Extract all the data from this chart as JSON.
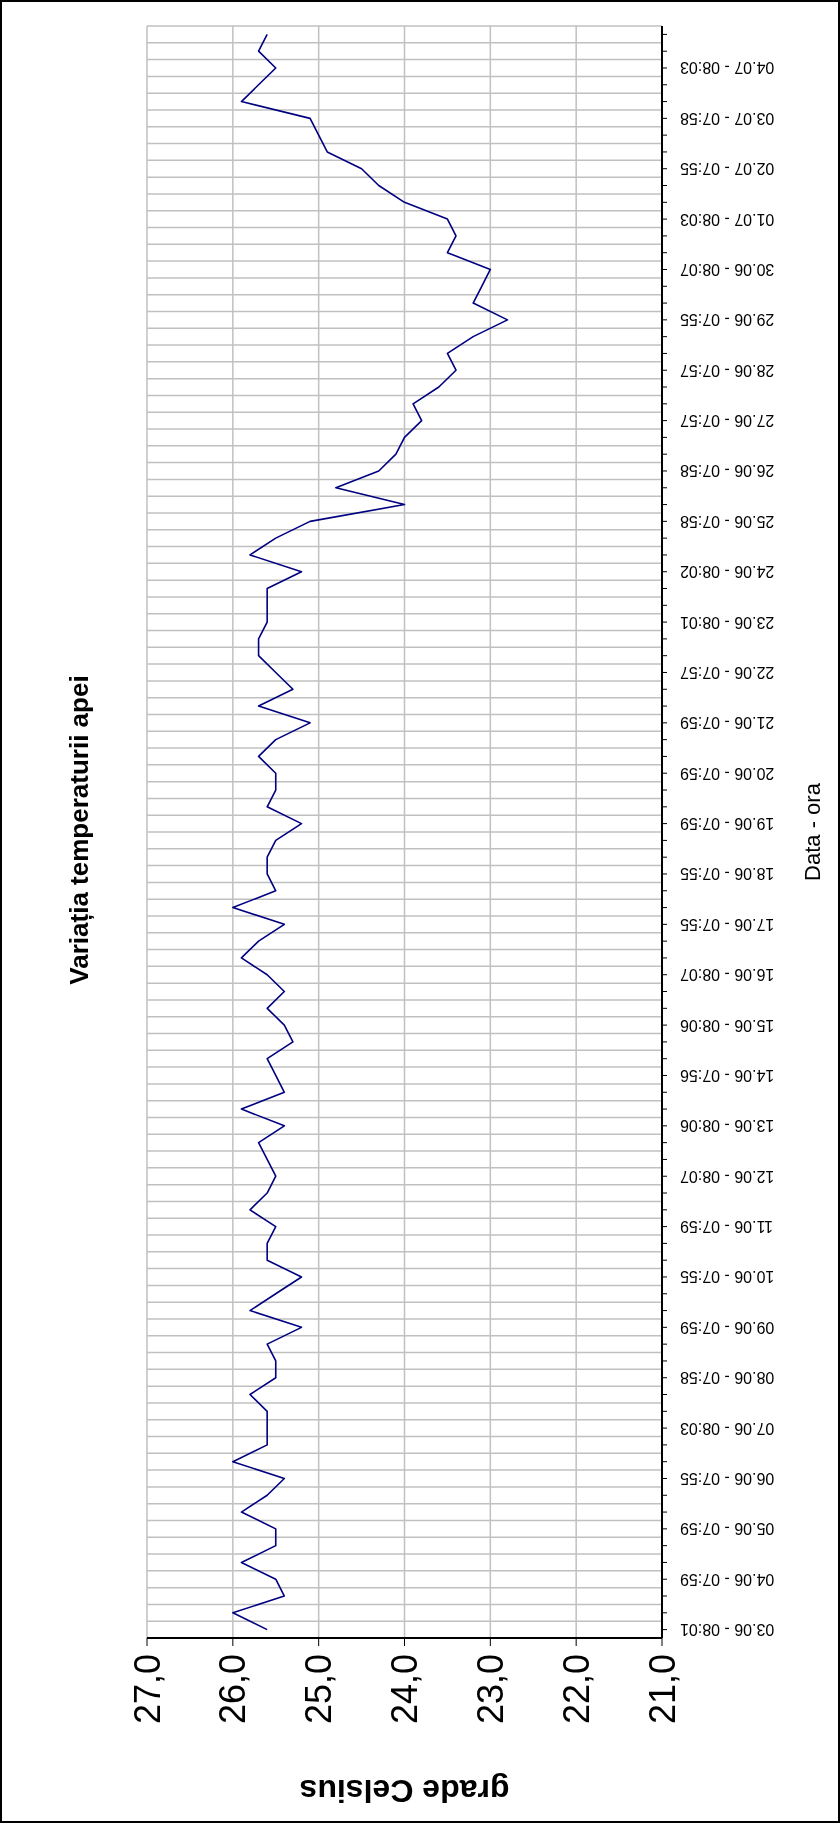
{
  "chart_data": {
    "type": "line",
    "orientation": "horizontal",
    "title": "Variația temperaturii apei",
    "xlabel": "grade Celsius",
    "ylabel": "Data - ora",
    "categories": [
      null,
      null,
      "04.07 - 08:03",
      null,
      null,
      "03.07 - 07:58",
      null,
      null,
      "02.07 - 07:55",
      null,
      null,
      "01.07 - 08:03",
      null,
      null,
      "30.06 - 08:07",
      null,
      null,
      "29.06 - 07:55",
      null,
      null,
      "28.06 - 07:57",
      null,
      null,
      "27.06 - 07:57",
      null,
      null,
      "26.06 - 07:58",
      null,
      null,
      "25.06 - 07:58",
      null,
      null,
      "24.06 - 08:02",
      null,
      null,
      "23.06 - 08:01",
      null,
      null,
      "22.06 - 07:57",
      null,
      null,
      "21.06 - 07:59",
      null,
      null,
      "20.06 - 07:59",
      null,
      null,
      "19.06 - 07:59",
      null,
      null,
      "18.06 - 07:55",
      null,
      null,
      "17.06 - 07:55",
      null,
      null,
      "16.06 - 08:07",
      null,
      null,
      "15.06 - 08:06",
      null,
      null,
      "14.06 - 07:56",
      null,
      null,
      "13.06 - 08:06",
      null,
      null,
      "12.06 - 08:07",
      null,
      null,
      "11.06 - 07:59",
      null,
      null,
      "10.06 - 07:55",
      null,
      null,
      "09.06 - 07:59",
      null,
      null,
      "08.06 - 07:58",
      null,
      null,
      "07.06 - 08:03",
      null,
      null,
      "06.06 - 07:55",
      null,
      null,
      "05.06 - 07:59",
      null,
      null,
      "04.06 - 07:59",
      null,
      null,
      "03.06 - 08:01"
    ],
    "series": [
      {
        "color": "#000080",
        "values": [
          25.6,
          25.7,
          25.5,
          25.7,
          25.9,
          25.1,
          25.0,
          24.9,
          24.5,
          24.3,
          24.0,
          23.5,
          23.4,
          23.5,
          23.0,
          23.1,
          23.2,
          22.8,
          23.2,
          23.5,
          23.4,
          23.6,
          23.9,
          23.8,
          24.0,
          24.1,
          24.3,
          24.8,
          24.0,
          25.1,
          25.5,
          25.8,
          25.2,
          25.6,
          25.6,
          25.6,
          25.7,
          25.7,
          25.5,
          25.3,
          25.7,
          25.1,
          25.5,
          25.7,
          25.5,
          25.5,
          25.6,
          25.2,
          25.5,
          25.6,
          25.6,
          25.5,
          26.0,
          25.4,
          25.7,
          25.9,
          25.6,
          25.4,
          25.6,
          25.4,
          25.3,
          25.6,
          25.5,
          25.4,
          25.9,
          25.4,
          25.7,
          25.6,
          25.5,
          25.6,
          25.8,
          25.5,
          25.6,
          25.6,
          25.2,
          25.5,
          25.8,
          25.2,
          25.6,
          25.5,
          25.5,
          25.8,
          25.6,
          25.6,
          25.6,
          26.0,
          25.4,
          25.6,
          25.9,
          25.5,
          25.5,
          25.9,
          25.5,
          25.4,
          26.0,
          25.6
        ]
      }
    ],
    "xlim": [
      27,
      21
    ],
    "xticks": [
      {
        "value": 27,
        "label": "27,0"
      },
      {
        "value": 26,
        "label": "26,0"
      },
      {
        "value": 25,
        "label": "25,0"
      },
      {
        "value": 24,
        "label": "24,0"
      },
      {
        "value": 23,
        "label": "23,0"
      },
      {
        "value": 22,
        "label": "22,0"
      },
      {
        "value": 21,
        "label": "21,0"
      }
    ],
    "grid": true
  }
}
